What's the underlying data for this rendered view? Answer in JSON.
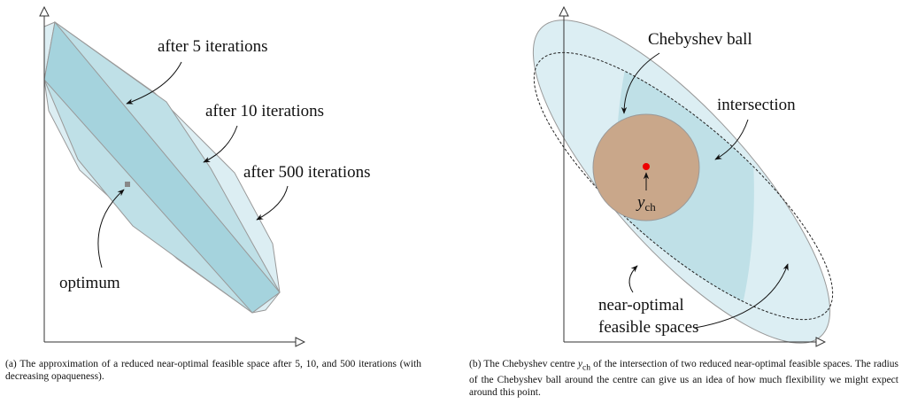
{
  "panel_a": {
    "labels": [
      "after 5 iterations",
      "after 10 iterations",
      "after 500 iterations",
      "optimum"
    ],
    "caption": "(a) The approximation of a reduced near-optimal feasible space after 5, 10, and 500 iterations (with decreasing opaqueness)."
  },
  "panel_b": {
    "labels": [
      "Chebyshev ball",
      "intersection",
      "near-optimal",
      "feasible spaces"
    ],
    "centre_symbol": "y",
    "centre_subscript": "ch",
    "caption_before": "(b) The Chebyshev centre ",
    "caption_after": " of the intersection of two reduced near-optimal feasible spaces. The radius of the Chebyshev ball around the centre can give us an idea of how much flexibility we might expect around this point."
  }
}
